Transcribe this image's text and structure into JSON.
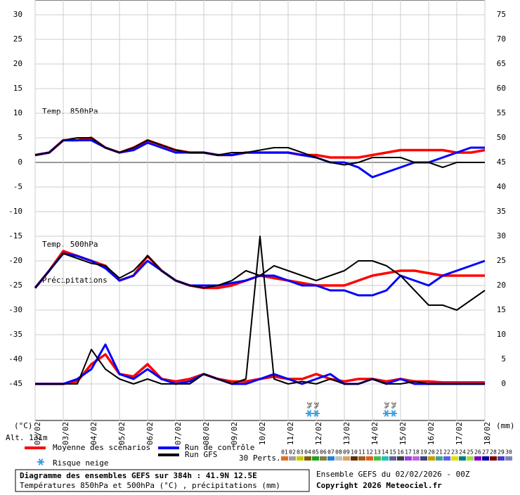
{
  "chart_data": {
    "type": "line",
    "labels": {
      "t850": "Temp. 850hPa",
      "t500": "Temp. 500hPa",
      "precip": "Précipitations",
      "y_unit": "(°C)",
      "y2_unit": "(mm)",
      "altitude": "Alt. 131m"
    },
    "x": [
      0,
      12,
      24,
      36,
      48,
      60,
      72,
      84,
      96,
      108,
      120,
      132,
      144,
      156,
      168,
      180,
      192,
      204,
      216,
      228,
      240,
      252,
      264,
      276,
      288,
      300,
      312,
      324,
      336,
      348,
      360,
      372,
      384
    ],
    "xlim": [
      0,
      384
    ],
    "xticks": [
      {
        "value": 0,
        "label": "02/02"
      },
      {
        "value": 24,
        "label": "03/02"
      },
      {
        "value": 48,
        "label": "04/02"
      },
      {
        "value": 72,
        "label": "05/02"
      },
      {
        "value": 96,
        "label": "06/02"
      },
      {
        "value": 120,
        "label": "07/02"
      },
      {
        "value": 144,
        "label": "08/02"
      },
      {
        "value": 168,
        "label": "09/02"
      },
      {
        "value": 192,
        "label": "10/02"
      },
      {
        "value": 216,
        "label": "11/02"
      },
      {
        "value": 240,
        "label": "12/02"
      },
      {
        "value": 264,
        "label": "13/02"
      },
      {
        "value": 288,
        "label": "14/02"
      },
      {
        "value": 312,
        "label": "15/02"
      },
      {
        "value": 336,
        "label": "16/02"
      },
      {
        "value": 360,
        "label": "17/02"
      },
      {
        "value": 384,
        "label": "18/02"
      }
    ],
    "ylim": [
      -52.5,
      33
    ],
    "yticks": [
      30,
      25,
      20,
      15,
      10,
      5,
      0,
      -5,
      -10,
      -15,
      -20,
      -25,
      -30,
      -35,
      -40,
      -45
    ],
    "y2lim": [
      -7.5,
      78
    ],
    "y2ticks": [
      75,
      70,
      65,
      60,
      55,
      50,
      45,
      40,
      35,
      30,
      25,
      20,
      15,
      10,
      5,
      0
    ],
    "grid": true,
    "series": [
      {
        "name": "Moyenne des scénarios",
        "color": "#ff0000",
        "width": 3.5,
        "axis": "y",
        "values": [
          1.5,
          2,
          4.5,
          4.5,
          5,
          3,
          2,
          3,
          4.5,
          3.5,
          2.5,
          2,
          2,
          1.5,
          1.5,
          2,
          2,
          2,
          2,
          1.5,
          1.5,
          1,
          1,
          1,
          1.5,
          2,
          2.5,
          2.5,
          2.5,
          2.5,
          2,
          2,
          2.5
        ]
      },
      {
        "name": "Run de contrôle",
        "color": "#0000ff",
        "width": 3,
        "axis": "y",
        "values": [
          1.5,
          2,
          4.5,
          4.5,
          4.5,
          3,
          2,
          2.5,
          4,
          3,
          2,
          2,
          2,
          1.5,
          1.5,
          2,
          2,
          2,
          2,
          1.5,
          1,
          0,
          0,
          -1,
          -3,
          -2,
          -1,
          0,
          0,
          1,
          2,
          3,
          3
        ]
      },
      {
        "name": "Run GFS",
        "color": "#000000",
        "width": 2,
        "axis": "y",
        "values": [
          1.5,
          2,
          4.5,
          5,
          5,
          3,
          2,
          3,
          4.5,
          3.5,
          2.5,
          2,
          2,
          1.5,
          2,
          2,
          2.5,
          3,
          3,
          2,
          1,
          0,
          -0.5,
          0,
          1,
          1,
          1,
          0,
          0,
          -1,
          0,
          0,
          0
        ]
      },
      {
        "name": "Moyenne des scénarios",
        "color": "#ff0000",
        "width": 3.5,
        "axis": "y",
        "values": [
          -25.5,
          -22,
          -18,
          -19,
          -20,
          -21,
          -24,
          -23,
          -19,
          -22,
          -24,
          -25,
          -25.5,
          -25.5,
          -25,
          -24,
          -23,
          -23.5,
          -24,
          -24.5,
          -25,
          -25,
          -25,
          -24,
          -23,
          -22.5,
          -22,
          -22,
          -22.5,
          -23,
          -23,
          -23,
          -23
        ]
      },
      {
        "name": "Run de contrôle",
        "color": "#0000ff",
        "width": 3,
        "axis": "y",
        "values": [
          -25.5,
          -22,
          -18.5,
          -19,
          -20,
          -21.5,
          -24,
          -23,
          -20,
          -22,
          -24,
          -25,
          -25,
          -25,
          -24.5,
          -24,
          -23,
          -23,
          -24,
          -25,
          -25,
          -26,
          -26,
          -27,
          -27,
          -26,
          -23,
          -24,
          -25,
          -23,
          -22,
          -21,
          -20
        ]
      },
      {
        "name": "Run GFS",
        "color": "#000000",
        "width": 2,
        "axis": "y",
        "values": [
          -25.5,
          -22,
          -18.5,
          -19.5,
          -20.5,
          -21,
          -23.5,
          -22,
          -19,
          -22,
          -24,
          -25,
          -25.5,
          -25,
          -24,
          -22,
          -23,
          -21,
          -22,
          -23,
          -24,
          -23,
          -22,
          -20,
          -20,
          -21,
          -23,
          -26,
          -29,
          -29,
          -30,
          -28,
          -26
        ]
      },
      {
        "name": "Moyenne des scénarios",
        "color": "#ff0000",
        "width": 3.5,
        "axis": "y2",
        "values": [
          0,
          0,
          0,
          0.5,
          4,
          6,
          2,
          1.5,
          4,
          1,
          0.5,
          1,
          2,
          1,
          0.5,
          0.5,
          1,
          1.5,
          1,
          1,
          2,
          1,
          0.5,
          1,
          1,
          0.5,
          1,
          0.5,
          0.5,
          0.3,
          0.3,
          0.3,
          0.3
        ]
      },
      {
        "name": "Run de contrôle",
        "color": "#0000ff",
        "width": 3,
        "axis": "y2",
        "values": [
          0,
          0,
          0,
          1,
          3,
          8,
          2,
          1,
          3,
          1,
          0,
          0.5,
          2,
          1,
          0,
          0,
          1,
          2,
          1,
          0,
          1,
          2,
          0,
          0,
          1,
          0,
          1,
          0,
          0,
          0,
          0,
          0,
          0
        ]
      },
      {
        "name": "Run GFS",
        "color": "#000000",
        "width": 2,
        "axis": "y2",
        "values": [
          0,
          0,
          0,
          0,
          7,
          3,
          1,
          0,
          1,
          0,
          0,
          0,
          2,
          1,
          0,
          1,
          30,
          1,
          0,
          0.5,
          0,
          1,
          0,
          0,
          1,
          0,
          0,
          0.5,
          0,
          0,
          0,
          0,
          0
        ]
      }
    ],
    "snow_risk": {
      "name": "Risque neige",
      "x": [
        234,
        240,
        300,
        306
      ],
      "labels": [
        "3%",
        "3%",
        "3%",
        "3%"
      ]
    },
    "perturbations": {
      "title": "30 Perts.",
      "ids": [
        "01",
        "02",
        "03",
        "04",
        "05",
        "06",
        "07",
        "08",
        "09",
        "10",
        "11",
        "12",
        "13",
        "14",
        "15",
        "16",
        "17",
        "18",
        "19",
        "20",
        "21",
        "22",
        "23",
        "24",
        "25",
        "26",
        "27",
        "28",
        "29",
        "30"
      ],
      "colors": [
        "#e07020",
        "#a0a0a0",
        "#c8c800",
        "#806000",
        "#20a020",
        "#808040",
        "#2080e0",
        "#c0c0c0",
        "#e0a060",
        "#603000",
        "#a06020",
        "#e06020",
        "#40c040",
        "#20c0c0",
        "#6060a0",
        "#404040",
        "#a040e0",
        "#c060e0",
        "#404080",
        "#c0a000",
        "#40a0a0",
        "#6060e0",
        "#e0e000",
        "#008080",
        "#a0e040",
        "#8000c0",
        "#0000a0",
        "#800000",
        "#4040c0",
        "#8080c0"
      ]
    },
    "footer": {
      "title": "Diagramme des ensembles GEFS sur 384h : 41.9N 12.5E",
      "subtitle": "Températures 850hPa et 500hPa (°C) , précipitations (mm)",
      "run": "Ensemble GEFS du 02/02/2026 - 00Z",
      "copyright": "Copyright 2026 Meteociel.fr"
    }
  }
}
